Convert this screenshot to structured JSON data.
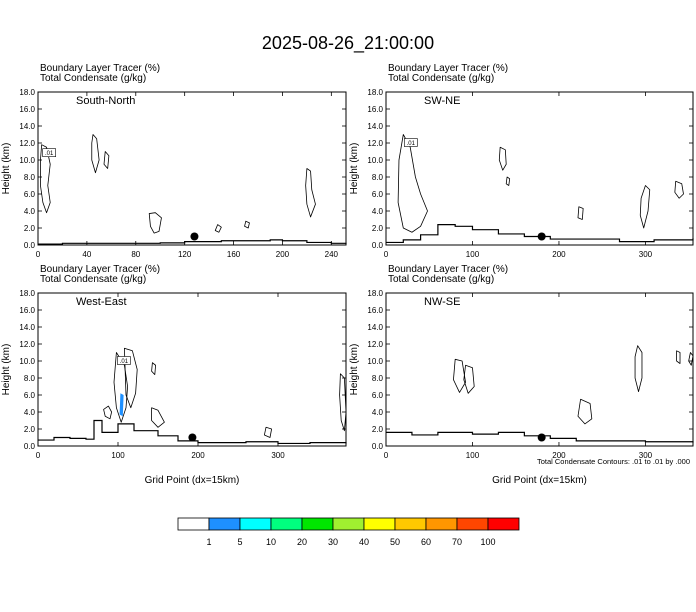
{
  "figure": {
    "title": "2025-08-26_21:00:00",
    "footnote": "Total Condensate Contours: .01 to .01 by .000"
  },
  "colorbar": {
    "labels": [
      "1",
      "5",
      "10",
      "20",
      "30",
      "40",
      "50",
      "60",
      "70",
      "100"
    ],
    "colors": [
      "#ffffff",
      "#1e90ff",
      "#00ffff",
      "#00ff7f",
      "#00e600",
      "#a0f030",
      "#ffff00",
      "#ffc800",
      "#ff9600",
      "#ff4600",
      "#ff0000"
    ]
  },
  "chart_data": [
    {
      "type": "contour",
      "panel_label": "South-North",
      "header_line1": "Boundary Layer Tracer   (%)",
      "header_line2": "Total Condensate   (g/kg)",
      "ylabel": "Height (km)",
      "xlabel": "",
      "xlim": [
        0,
        252
      ],
      "ylim": [
        0,
        18
      ],
      "xticks": [
        0,
        40,
        80,
        120,
        160,
        200,
        240
      ],
      "yticks": [
        "0.0",
        "2.0",
        "4.0",
        "6.0",
        "8.0",
        "10.0",
        "12.0",
        "14.0",
        "16.0",
        "18.0"
      ],
      "contour_label": ".01",
      "marker": {
        "x": 128,
        "y": 1.0
      },
      "terrain": [
        [
          0,
          0.1
        ],
        [
          20,
          0.2
        ],
        [
          60,
          0.2
        ],
        [
          100,
          0.25
        ],
        [
          120,
          0.4
        ],
        [
          150,
          0.5
        ],
        [
          170,
          0.5
        ],
        [
          190,
          0.6
        ],
        [
          200,
          0.5
        ],
        [
          220,
          0.3
        ],
        [
          240,
          0.2
        ],
        [
          252,
          0.1
        ]
      ],
      "contours": [
        [
          [
            3,
            11.8
          ],
          [
            7,
            11.5
          ],
          [
            10,
            9.5
          ],
          [
            8,
            7
          ],
          [
            10,
            5
          ],
          [
            7,
            3.8
          ],
          [
            4,
            5
          ],
          [
            2,
            7
          ],
          [
            2,
            10
          ]
        ],
        [
          [
            45,
            13
          ],
          [
            48,
            12.5
          ],
          [
            50,
            10
          ],
          [
            47,
            8.5
          ],
          [
            44,
            10
          ],
          [
            44,
            12
          ]
        ],
        [
          [
            55,
            11
          ],
          [
            58,
            10.5
          ],
          [
            57,
            9
          ],
          [
            54,
            9.5
          ]
        ],
        [
          [
            91,
            3.7
          ],
          [
            96,
            3.8
          ],
          [
            101,
            3.2
          ],
          [
            99,
            1.6
          ],
          [
            95,
            1.4
          ],
          [
            92,
            2.2
          ]
        ],
        [
          [
            220,
            9
          ],
          [
            223,
            8.7
          ],
          [
            224,
            6.5
          ],
          [
            227,
            4.8
          ],
          [
            223,
            3.3
          ],
          [
            220,
            4.8
          ],
          [
            219,
            7
          ]
        ],
        [
          [
            147,
            2.4
          ],
          [
            150,
            2.1
          ],
          [
            148,
            1.5
          ],
          [
            145,
            1.7
          ]
        ],
        [
          [
            170,
            2.8
          ],
          [
            173,
            2.6
          ],
          [
            172,
            2
          ],
          [
            169,
            2.2
          ]
        ]
      ],
      "shaded": []
    },
    {
      "type": "contour",
      "panel_label": "SW-NE",
      "header_line1": "Boundary Layer Tracer   (%)",
      "header_line2": "Total Condensate   (g/kg)",
      "ylabel": "Height (km)",
      "xlabel": "",
      "xlim": [
        0,
        355
      ],
      "ylim": [
        0,
        18
      ],
      "xticks": [
        0,
        100,
        200,
        300
      ],
      "yticks": [
        "0.0",
        "2.0",
        "4.0",
        "6.0",
        "8.0",
        "10.0",
        "12.0",
        "14.0",
        "16.0",
        "18.0"
      ],
      "contour_label": ".01",
      "marker": {
        "x": 180,
        "y": 1.0
      },
      "terrain": [
        [
          0,
          0.3
        ],
        [
          20,
          0.6
        ],
        [
          40,
          1.2
        ],
        [
          60,
          2.4
        ],
        [
          80,
          2.2
        ],
        [
          100,
          1.8
        ],
        [
          130,
          1.3
        ],
        [
          160,
          1.0
        ],
        [
          190,
          0.7
        ],
        [
          230,
          0.7
        ],
        [
          270,
          0.4
        ],
        [
          310,
          0.6
        ],
        [
          355,
          0.8
        ]
      ],
      "contours": [
        [
          [
            20,
            13
          ],
          [
            28,
            11.5
          ],
          [
            34,
            8
          ],
          [
            40,
            6
          ],
          [
            48,
            4
          ],
          [
            40,
            2.2
          ],
          [
            30,
            1.5
          ],
          [
            20,
            2
          ],
          [
            14,
            5
          ],
          [
            15,
            10
          ]
        ],
        [
          [
            132,
            11.5
          ],
          [
            138,
            11.2
          ],
          [
            139,
            9.5
          ],
          [
            135,
            8.8
          ],
          [
            131,
            10
          ]
        ],
        [
          [
            140,
            8
          ],
          [
            143,
            7.8
          ],
          [
            142,
            7
          ],
          [
            139,
            7.2
          ]
        ],
        [
          [
            300,
            7
          ],
          [
            305,
            6.5
          ],
          [
            303,
            4
          ],
          [
            298,
            2
          ],
          [
            294,
            3.5
          ],
          [
            295,
            5.5
          ]
        ],
        [
          [
            335,
            7.5
          ],
          [
            342,
            7.2
          ],
          [
            344,
            6
          ],
          [
            339,
            5.5
          ],
          [
            334,
            6.2
          ]
        ],
        [
          [
            223,
            4.5
          ],
          [
            228,
            4.3
          ],
          [
            227,
            3
          ],
          [
            222,
            3.2
          ]
        ]
      ],
      "shaded": []
    },
    {
      "type": "contour",
      "panel_label": "West-East",
      "header_line1": "Boundary Layer Tracer   (%)",
      "header_line2": "Total Condensate   (g/kg)",
      "ylabel": "Height (km)",
      "xlabel": "Grid Point (dx=15km)",
      "xlim": [
        0,
        385
      ],
      "ylim": [
        0,
        18
      ],
      "xticks": [
        0,
        100,
        200,
        300
      ],
      "yticks": [
        "0.0",
        "2.0",
        "4.0",
        "6.0",
        "8.0",
        "10.0",
        "12.0",
        "14.0",
        "16.0",
        "18.0"
      ],
      "contour_label": ".01",
      "marker": {
        "x": 193,
        "y": 1.0
      },
      "terrain": [
        [
          0,
          0.7
        ],
        [
          20,
          1.0
        ],
        [
          40,
          0.9
        ],
        [
          60,
          0.8
        ],
        [
          70,
          3.0
        ],
        [
          80,
          1.6
        ],
        [
          100,
          2.6
        ],
        [
          120,
          1.8
        ],
        [
          150,
          1.2
        ],
        [
          175,
          0.6
        ],
        [
          200,
          0.4
        ],
        [
          260,
          0.5
        ],
        [
          300,
          0.3
        ],
        [
          340,
          0.4
        ],
        [
          385,
          0.3
        ]
      ],
      "contours": [
        [
          [
            98,
            11
          ],
          [
            108,
            9.5
          ],
          [
            112,
            7
          ],
          [
            110,
            4.5
          ],
          [
            104,
            2.8
          ],
          [
            98,
            4.5
          ],
          [
            95,
            7.5
          ]
        ],
        [
          [
            108,
            11.5
          ],
          [
            118,
            11.2
          ],
          [
            124,
            9
          ],
          [
            122,
            6.2
          ],
          [
            116,
            4.5
          ],
          [
            110,
            6
          ]
        ],
        [
          [
            82,
            4.3
          ],
          [
            88,
            4.7
          ],
          [
            92,
            4
          ],
          [
            90,
            3.2
          ],
          [
            84,
            3.5
          ]
        ],
        [
          [
            143,
            9.8
          ],
          [
            147,
            9.5
          ],
          [
            146,
            8.4
          ],
          [
            142,
            8.8
          ]
        ],
        [
          [
            378,
            8.5
          ],
          [
            383,
            8
          ],
          [
            385,
            4
          ],
          [
            383,
            1.8
          ],
          [
            379,
            3
          ],
          [
            377,
            6
          ]
        ],
        [
          [
            142,
            4.5
          ],
          [
            150,
            4.2
          ],
          [
            158,
            2.8
          ],
          [
            150,
            2.2
          ],
          [
            142,
            3
          ]
        ],
        [
          [
            285,
            2.2
          ],
          [
            292,
            2
          ],
          [
            290,
            1
          ],
          [
            283,
            1.3
          ]
        ]
      ],
      "shaded": [
        [
          [
            103,
            6.2
          ],
          [
            107,
            6.0
          ],
          [
            106,
            3.5
          ],
          [
            102,
            3.7
          ]
        ]
      ]
    },
    {
      "type": "contour",
      "panel_label": "NW-SE",
      "header_line1": "Boundary Layer Tracer   (%)",
      "header_line2": "Total Condensate   (g/kg)",
      "ylabel": "Height (km)",
      "xlabel": "Grid Point (dx=15km)",
      "xlim": [
        0,
        355
      ],
      "ylim": [
        0,
        18
      ],
      "xticks": [
        0,
        100,
        200,
        300
      ],
      "yticks": [
        "0.0",
        "2.0",
        "4.0",
        "6.0",
        "8.0",
        "10.0",
        "12.0",
        "14.0",
        "16.0",
        "18.0"
      ],
      "contour_label": "",
      "marker": {
        "x": 180,
        "y": 1.0
      },
      "terrain": [
        [
          0,
          1.6
        ],
        [
          30,
          1.3
        ],
        [
          60,
          1.6
        ],
        [
          100,
          1.4
        ],
        [
          130,
          1.6
        ],
        [
          160,
          1.2
        ],
        [
          190,
          0.9
        ],
        [
          220,
          0.6
        ],
        [
          260,
          0.6
        ],
        [
          300,
          0.5
        ],
        [
          355,
          0.4
        ]
      ],
      "contours": [
        [
          [
            80,
            10.2
          ],
          [
            88,
            10
          ],
          [
            92,
            7.5
          ],
          [
            85,
            6.3
          ],
          [
            78,
            7.8
          ]
        ],
        [
          [
            92,
            9.5
          ],
          [
            100,
            9.2
          ],
          [
            102,
            7
          ],
          [
            95,
            6.2
          ],
          [
            90,
            7.8
          ]
        ],
        [
          [
            225,
            5.5
          ],
          [
            236,
            5
          ],
          [
            238,
            3.2
          ],
          [
            230,
            2.6
          ],
          [
            222,
            3.5
          ]
        ],
        [
          [
            291,
            11.8
          ],
          [
            296,
            11
          ],
          [
            296,
            8
          ],
          [
            292,
            6.4
          ],
          [
            288,
            8
          ],
          [
            288,
            10.5
          ]
        ],
        [
          [
            336,
            11.2
          ],
          [
            340,
            11
          ],
          [
            340,
            9.7
          ],
          [
            336,
            10
          ]
        ],
        [
          [
            352,
            11
          ],
          [
            355,
            10.6
          ],
          [
            353,
            9.5
          ],
          [
            350,
            10
          ]
        ]
      ],
      "shaded": []
    }
  ]
}
